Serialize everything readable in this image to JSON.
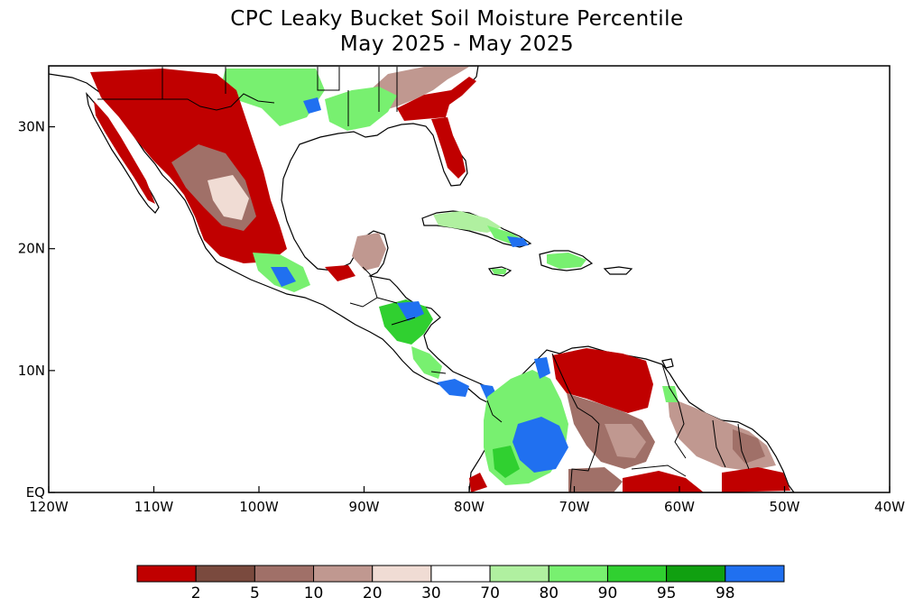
{
  "title": {
    "line1": "CPC Leaky Bucket Soil Moisture Percentile",
    "line2": "May 2025 - May 2025"
  },
  "map": {
    "lon_range": [
      -120,
      -40
    ],
    "lat_range": [
      0,
      35
    ],
    "x_ticks": [
      {
        "lon": -120,
        "label": "120W"
      },
      {
        "lon": -110,
        "label": "110W"
      },
      {
        "lon": -100,
        "label": "100W"
      },
      {
        "lon": -90,
        "label": "90W"
      },
      {
        "lon": -80,
        "label": "80W"
      },
      {
        "lon": -70,
        "label": "70W"
      },
      {
        "lon": -60,
        "label": "60W"
      },
      {
        "lon": -50,
        "label": "50W"
      },
      {
        "lon": -40,
        "label": "40W"
      }
    ],
    "y_ticks": [
      {
        "lat": 0,
        "label": "EQ"
      },
      {
        "lat": 10,
        "label": "10N"
      },
      {
        "lat": 20,
        "label": "20N"
      },
      {
        "lat": 30,
        "label": "30N"
      }
    ],
    "colors": {
      "land_default": "#ffffff",
      "coast": "#000000"
    },
    "regions": [
      {
        "name": "southeast-us-dry",
        "class": "2"
      },
      {
        "name": "florida-dry",
        "class": "2"
      },
      {
        "name": "mexico-north-dry",
        "class": "2"
      },
      {
        "name": "mexico-central-dry",
        "class": "5"
      },
      {
        "name": "texas-wet",
        "class": "98"
      },
      {
        "name": "gulf-coast-wet",
        "class": "90"
      },
      {
        "name": "central-america-wet",
        "class": "95"
      },
      {
        "name": "colombia-wet",
        "class": "98"
      },
      {
        "name": "venezuela-dry",
        "class": "2"
      },
      {
        "name": "guianas-dry",
        "class": "10"
      },
      {
        "name": "cuba-mixed",
        "class": "80"
      },
      {
        "name": "hispaniola-wet",
        "class": "90"
      }
    ]
  },
  "colorbar": {
    "bins": [
      {
        "color": "#c00000"
      },
      {
        "color": "#7a4a3e"
      },
      {
        "color": "#a07068"
      },
      {
        "color": "#c09890"
      },
      {
        "color": "#f0dcd4"
      },
      {
        "color": "#ffffff"
      },
      {
        "color": "#b0f0a0"
      },
      {
        "color": "#78f070"
      },
      {
        "color": "#30d030"
      },
      {
        "color": "#10a010"
      },
      {
        "color": "#2070f0"
      }
    ],
    "labels": [
      "2",
      "5",
      "10",
      "20",
      "30",
      "70",
      "80",
      "90",
      "95",
      "98"
    ]
  }
}
